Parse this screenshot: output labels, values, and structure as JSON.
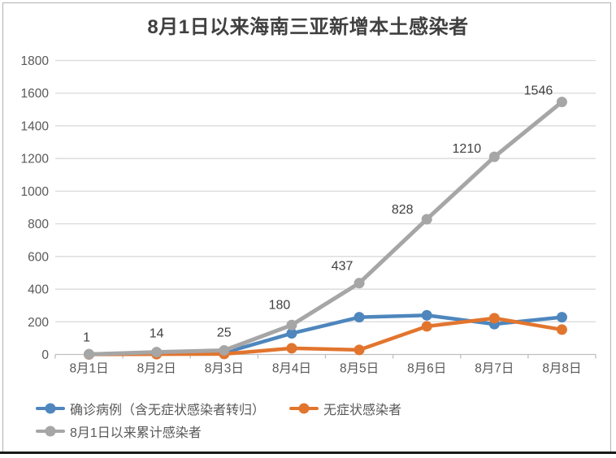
{
  "chart_data": {
    "type": "line",
    "title": "8月1日以来海南三亚新增本土感染者",
    "categories": [
      "8月1日",
      "8月2日",
      "8月3日",
      "8月4日",
      "8月5日",
      "8月6日",
      "8月7日",
      "8月8日"
    ],
    "yticks": [
      0,
      200,
      400,
      600,
      800,
      1000,
      1200,
      1400,
      1600,
      1800
    ],
    "ylim": [
      0,
      1800
    ],
    "grid": "horizontal",
    "legend_position": "bottom-left",
    "series": [
      {
        "name": "确诊病例（含无症状感染者转归）",
        "color": "#4e86bd",
        "values": [
          1,
          13,
          10,
          129,
          228,
          240,
          186,
          228
        ],
        "data_labels": false
      },
      {
        "name": "无症状感染者",
        "color": "#e2752e",
        "values": [
          0,
          2,
          3,
          38,
          28,
          172,
          222,
          152
        ],
        "data_labels": false
      },
      {
        "name": "8月1日以来累计感染者",
        "color": "#a6a6a6",
        "values": [
          1,
          14,
          25,
          180,
          437,
          828,
          1210,
          1546
        ],
        "data_labels": true,
        "point_labels": [
          "1",
          "14",
          "25",
          "180",
          "437",
          "828",
          "1210",
          "1546"
        ]
      }
    ]
  },
  "styles": {
    "grid_color": "#d9d9d9",
    "axis_color": "#bfbfbf",
    "tick_label_color": "#595959",
    "data_label_color": "#404040",
    "title_color": "#404040",
    "card_border_color": "#b2b2b2",
    "bottom_bar_color": "#191919",
    "background": "#ffffff"
  }
}
